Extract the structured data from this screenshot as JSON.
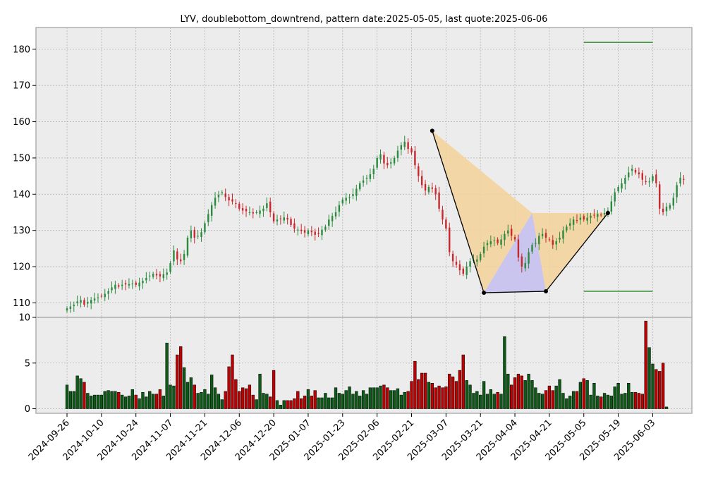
{
  "chart_data": {
    "type": "candlestick",
    "title": "LYV, doublebottom_downtrend, pattern date:2025-05-05, last quote:2025-06-06",
    "price_axis": {
      "ylim": [
        106,
        186
      ],
      "ticks": [
        110,
        120,
        130,
        140,
        150,
        160,
        170,
        180
      ]
    },
    "volume_axis": {
      "ylim": [
        -0.5,
        10
      ],
      "ticks": [
        0,
        5,
        10
      ]
    },
    "x_ticks": [
      "2024-09-26",
      "2024-10-10",
      "2024-10-24",
      "2024-11-07",
      "2024-11-21",
      "2024-12-06",
      "2024-12-20",
      "2025-01-07",
      "2025-01-23",
      "2025-02-06",
      "2025-02-21",
      "2025-03-07",
      "2025-03-21",
      "2025-04-04",
      "2025-04-21",
      "2025-05-05",
      "2025-05-19",
      "2025-06-03"
    ],
    "x_tick_index": [
      0,
      10,
      20,
      30,
      40,
      50,
      60,
      70,
      80,
      90,
      100,
      110,
      120,
      130,
      140,
      150,
      160,
      170
    ],
    "grid": true,
    "colors": {
      "up": "#2a8a3e",
      "down": "#c8282d",
      "volume_up": "#0b5a16",
      "volume_down": "#c00000",
      "pattern_outer": "#f5d29a",
      "pattern_inner": "#c7c3ee",
      "level_line": "#167e16",
      "background": "#ececec"
    },
    "closes": [
      108.5,
      109.0,
      109.5,
      110.4,
      110.8,
      109.5,
      110.3,
      110.8,
      111.2,
      111.5,
      111.9,
      112.5,
      113.2,
      114.3,
      115.0,
      114.5,
      115.0,
      115.1,
      115.2,
      115.3,
      115.0,
      115.6,
      116.1,
      116.9,
      117.5,
      118.0,
      117.6,
      117.3,
      117.9,
      118.4,
      121.0,
      124.5,
      122.0,
      121.5,
      123.5,
      128.0,
      130.0,
      128.0,
      128.5,
      129.5,
      132.0,
      134.5,
      137.0,
      139.0,
      139.8,
      140.5,
      139.2,
      138.3,
      138.0,
      137.5,
      136.0,
      135.5,
      135.3,
      135.0,
      134.7,
      135.0,
      135.5,
      136.0,
      137.5,
      135.0,
      132.5,
      133.0,
      133.2,
      133.6,
      133.0,
      131.5,
      130.5,
      130.2,
      129.8,
      129.4,
      130.0,
      129.5,
      128.8,
      129.0,
      130.2,
      131.0,
      133.0,
      134.0,
      135.0,
      137.0,
      138.5,
      139.0,
      139.2,
      140.0,
      141.5,
      143.0,
      143.8,
      144.5,
      145.5,
      147.0,
      150.0,
      151.0,
      148.5,
      148.0,
      148.8,
      150.0,
      152.0,
      153.5,
      154.5,
      152.5,
      151.5,
      148.0,
      145.0,
      142.5,
      141.0,
      142.0,
      141.5,
      140.0,
      136.0,
      133.0,
      130.5,
      124.0,
      121.5,
      120.5,
      119.0,
      118.0,
      120.0,
      121.5,
      121.8,
      122.0,
      123.5,
      125.5,
      126.5,
      127.0,
      127.2,
      126.5,
      127.5,
      129.0,
      130.0,
      128.5,
      127.5,
      122.5,
      120.0,
      121.0,
      124.0,
      126.0,
      126.5,
      128.5,
      129.0,
      128.0,
      127.5,
      126.0,
      127.0,
      128.0,
      130.0,
      131.0,
      132.0,
      133.0,
      132.8,
      133.5,
      133.0,
      133.5,
      134.0,
      134.2,
      134.5,
      134.3,
      134.8,
      135.5,
      138.0,
      140.5,
      142.0,
      143.0,
      144.5,
      146.0,
      147.0,
      146.0,
      145.5,
      144.0,
      143.5,
      143.5,
      145.0,
      143.0,
      136.0,
      135.0,
      136.5,
      137.0,
      139.0,
      142.5,
      144.5,
      144.0
    ],
    "volumes": [
      2.6,
      1.9,
      1.9,
      3.6,
      3.3,
      2.9,
      1.7,
      1.4,
      1.5,
      1.5,
      1.5,
      1.9,
      2.0,
      1.9,
      1.9,
      1.8,
      1.5,
      1.3,
      1.4,
      2.1,
      1.5,
      1.1,
      1.8,
      1.3,
      1.9,
      1.6,
      1.6,
      2.1,
      1.4,
      7.2,
      2.6,
      2.5,
      5.9,
      6.8,
      4.5,
      2.9,
      3.4,
      2.6,
      1.7,
      1.8,
      2.1,
      1.6,
      3.7,
      2.3,
      1.6,
      1.0,
      1.9,
      4.6,
      5.9,
      3.2,
      1.9,
      2.3,
      2.2,
      2.6,
      1.5,
      1.0,
      3.8,
      1.7,
      1.6,
      1.3,
      4.2,
      0.9,
      0.4,
      0.9,
      0.9,
      0.9,
      1.1,
      1.9,
      1.1,
      1.4,
      2.1,
      1.4,
      2.0,
      1.2,
      1.2,
      1.7,
      1.2,
      1.2,
      2.3,
      1.7,
      1.6,
      2.0,
      2.4,
      1.6,
      1.9,
      1.4,
      2.0,
      1.6,
      2.3,
      2.3,
      2.3,
      2.5,
      2.6,
      2.3,
      2.0,
      2.0,
      2.2,
      1.5,
      1.8,
      1.9,
      3.0,
      5.2,
      3.2,
      3.9,
      3.9,
      2.9,
      2.8,
      2.3,
      2.5,
      2.3,
      2.4,
      3.8,
      3.5,
      3.0,
      4.2,
      5.9,
      3.1,
      2.6,
      1.7,
      1.9,
      1.5,
      3.0,
      1.6,
      2.1,
      1.6,
      1.8,
      1.6,
      7.9,
      3.8,
      2.6,
      3.4,
      3.8,
      3.6,
      3.1,
      3.8,
      3.1,
      2.3,
      1.7,
      1.6,
      2.0,
      2.5,
      2.0,
      2.5,
      3.2,
      1.7,
      1.1,
      1.4,
      1.9,
      1.9,
      2.9,
      3.3,
      3.1,
      1.5,
      2.8,
      1.4,
      1.3,
      1.7,
      1.5,
      1.4,
      2.4,
      2.8,
      1.6,
      1.7,
      2.8,
      1.8,
      1.8,
      1.7,
      1.6,
      9.6,
      6.7,
      4.9,
      4.3,
      4.1,
      5.0,
      0.2
    ],
    "pattern_points": [
      {
        "date": "2025-02-21",
        "value": 157.5
      },
      {
        "date": "2025-03-14",
        "value": 112.8
      },
      {
        "date": "2025-04-09",
        "value": 113.2
      },
      {
        "date": "2025-05-05",
        "value": 134.8
      }
    ],
    "resistance_level": 181.9,
    "support_level": 113.2
  }
}
